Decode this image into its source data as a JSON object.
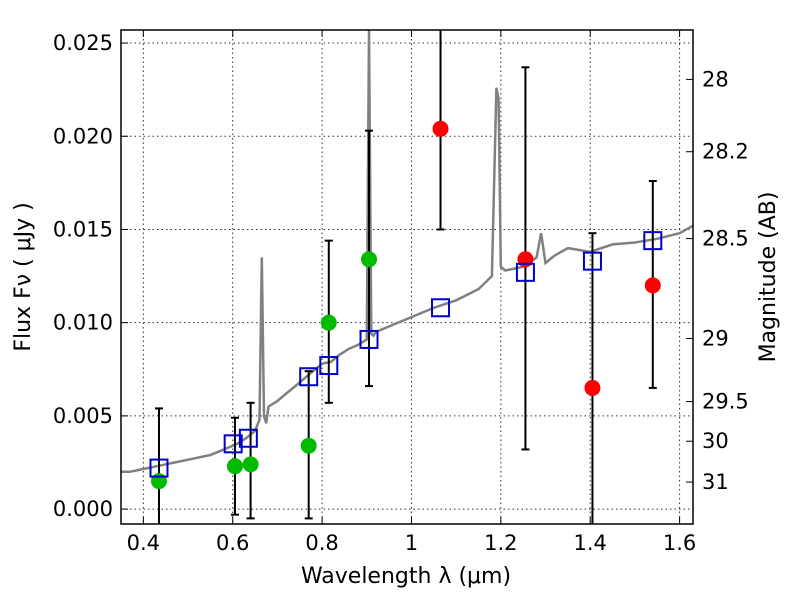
{
  "chart_data": {
    "type": "scatter",
    "xlabel": "Wavelength  λ (μm)",
    "ylabel": "Flux  Fν  ( μJy )",
    "ylabel_right": "Magnitude (AB)",
    "xlim": [
      0.35,
      1.63
    ],
    "ylim": [
      -0.0008,
      0.0257
    ],
    "grid": true,
    "x_ticks": [
      0.4,
      0.6,
      0.8,
      1.0,
      1.2,
      1.4,
      1.6
    ],
    "x_tick_labels": [
      "0.4",
      "0.6",
      "0.8",
      "1",
      "1.2",
      "1.4",
      "1.6"
    ],
    "y_ticks": [
      0.0,
      0.005,
      0.01,
      0.015,
      0.02,
      0.025
    ],
    "y_tick_labels": [
      "0.000",
      "0.005",
      "0.010",
      "0.015",
      "0.020",
      "0.025"
    ],
    "right_ticks": [
      {
        "label": "28",
        "flux": 0.02305
      },
      {
        "label": "28.2",
        "flux": 0.01917
      },
      {
        "label": "28.5",
        "flux": 0.01451
      },
      {
        "label": "29",
        "flux": 0.00915
      },
      {
        "label": "29.5",
        "flux": 0.00577
      },
      {
        "label": "30",
        "flux": 0.00364
      },
      {
        "label": "31",
        "flux": 0.00145
      }
    ],
    "model_spectrum": {
      "color": "#808080",
      "x": [
        0.35,
        0.37,
        0.39,
        0.41,
        0.43,
        0.45,
        0.47,
        0.49,
        0.51,
        0.53,
        0.55,
        0.57,
        0.59,
        0.61,
        0.63,
        0.65,
        0.66,
        0.665,
        0.67,
        0.675,
        0.68,
        0.7,
        0.72,
        0.74,
        0.76,
        0.78,
        0.8,
        0.82,
        0.84,
        0.86,
        0.88,
        0.9,
        0.905,
        0.91,
        0.915,
        0.92,
        0.95,
        1.0,
        1.05,
        1.1,
        1.15,
        1.18,
        1.19,
        1.195,
        1.2,
        1.21,
        1.25,
        1.28,
        1.29,
        1.3,
        1.32,
        1.35,
        1.4,
        1.45,
        1.5,
        1.55,
        1.6,
        1.63
      ],
      "y": [
        0.002,
        0.002,
        0.0021,
        0.0022,
        0.0023,
        0.0024,
        0.0025,
        0.0026,
        0.0027,
        0.0028,
        0.0029,
        0.0031,
        0.0033,
        0.0035,
        0.0038,
        0.0042,
        0.0048,
        0.0135,
        0.005,
        0.0046,
        0.0055,
        0.0058,
        0.0062,
        0.0066,
        0.007,
        0.0074,
        0.0078,
        0.0079,
        0.0083,
        0.0086,
        0.0088,
        0.0091,
        0.026,
        0.0094,
        0.0093,
        0.0095,
        0.0098,
        0.0103,
        0.0108,
        0.0112,
        0.0118,
        0.0125,
        0.0226,
        0.022,
        0.013,
        0.0128,
        0.013,
        0.0135,
        0.0148,
        0.0132,
        0.0136,
        0.014,
        0.0138,
        0.0142,
        0.0143,
        0.0145,
        0.0148,
        0.0152
      ]
    },
    "model_photometry": {
      "color": "#0000cc",
      "x": [
        0.435,
        0.601,
        0.635,
        0.77,
        0.815,
        0.905,
        1.065,
        1.255,
        1.405,
        1.54
      ],
      "y": [
        0.0022,
        0.0035,
        0.0038,
        0.0071,
        0.0077,
        0.0091,
        0.0108,
        0.0127,
        0.0133,
        0.0144
      ]
    },
    "green_points": {
      "color": "#00bb00",
      "x": [
        0.435,
        0.605,
        0.64,
        0.77,
        0.815,
        0.905
      ],
      "y": [
        0.0015,
        0.0023,
        0.0024,
        0.0034,
        0.01,
        0.0134
      ],
      "yerr_low": [
        -0.001,
        -0.0003,
        -0.0005,
        -0.0005,
        0.0057,
        0.0066
      ],
      "yerr_high": [
        0.0054,
        0.0049,
        0.0057,
        0.0074,
        0.0144,
        0.0203
      ]
    },
    "red_points": {
      "color": "#ff0000",
      "x": [
        1.065,
        1.255,
        1.405,
        1.54
      ],
      "y": [
        0.0204,
        0.0134,
        0.0065,
        0.012
      ],
      "yerr_low": [
        0.015,
        0.0032,
        -0.001,
        0.0065
      ],
      "yerr_high": [
        0.027,
        0.0237,
        0.0148,
        0.0176
      ]
    }
  }
}
